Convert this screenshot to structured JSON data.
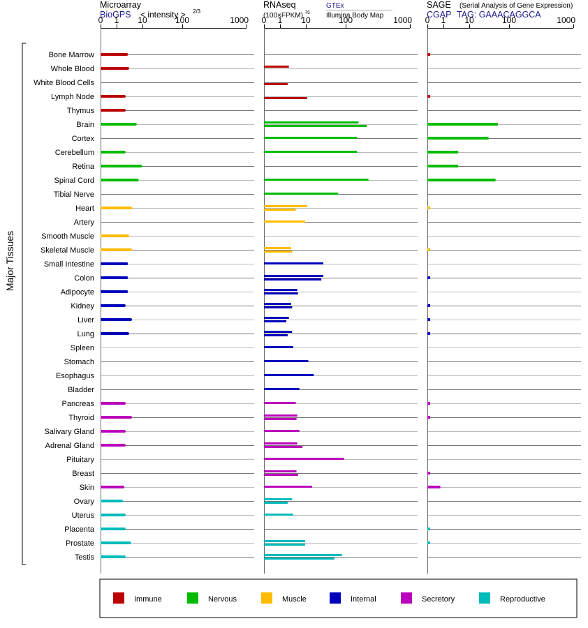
{
  "chart_data": {
    "type": "bar",
    "y_axis_title": "Major Tissues",
    "tick_labels": [
      "0",
      "1",
      "10",
      "100",
      "1000"
    ],
    "panels": [
      {
        "key": "microarray",
        "title": "Microarray",
        "source": "BioGPS",
        "unit_label": "< intensity >",
        "unit_exponent": "2/3",
        "values": [
          [
            1.7
          ],
          [
            1.8
          ],
          [
            null
          ],
          [
            1.5
          ],
          [
            1.5
          ],
          [
            2.7
          ],
          [
            null
          ],
          [
            1.5
          ],
          [
            3.6
          ],
          [
            3.0
          ],
          [
            null
          ],
          [
            2.1
          ],
          [
            null
          ],
          [
            1.8
          ],
          [
            2.1
          ],
          [
            1.7
          ],
          [
            1.7
          ],
          [
            1.7
          ],
          [
            1.5
          ],
          [
            2.1
          ],
          [
            1.8
          ],
          [
            null
          ],
          [
            null
          ],
          [
            null
          ],
          [
            null
          ],
          [
            1.5
          ],
          [
            2.1
          ],
          [
            1.5
          ],
          [
            1.5
          ],
          [
            null
          ],
          [
            null
          ],
          [
            1.4
          ],
          [
            1.3
          ],
          [
            1.5
          ],
          [
            1.5
          ],
          [
            2.0
          ],
          [
            1.5
          ]
        ]
      },
      {
        "key": "rnaseq",
        "title": "RNAseq",
        "unit_label": "(100×FPKM)",
        "unit_exponent": "½",
        "sources": [
          "GTEx",
          "Illumina Body Map"
        ],
        "values": [
          [
            null
          ],
          [
            1.6,
            null
          ],
          [
            null,
            1.5
          ],
          [
            null,
            4.2
          ],
          [
            null
          ],
          [
            65,
            100
          ],
          [
            60
          ],
          [
            60
          ],
          [
            null
          ],
          [
            110
          ],
          [
            22
          ],
          [
            4.2,
            2.3
          ],
          [
            3.8
          ],
          [
            null
          ],
          [
            1.8,
            1.9
          ],
          [
            10
          ],
          [
            10,
            9
          ],
          [
            2.5,
            2.6
          ],
          [
            1.8,
            1.9
          ],
          [
            1.6,
            1.4
          ],
          [
            1.9,
            1.5
          ],
          [
            2.0
          ],
          [
            4.5
          ],
          [
            6.0
          ],
          [
            2.8
          ],
          [
            2.3
          ],
          [
            2.5,
            2.4
          ],
          [
            2.8
          ],
          [
            2.5,
            3.3
          ],
          [
            30
          ],
          [
            2.4,
            2.6
          ],
          [
            5.5
          ],
          [
            1.9,
            1.5
          ],
          [
            2.0
          ],
          [
            null
          ],
          [
            3.8,
            3.8
          ],
          [
            27,
            18
          ]
        ]
      },
      {
        "key": "sage",
        "title": "SAGE",
        "subtitle": "(Serial Analysis of Gene Expression)",
        "source_label": "CGAP",
        "tag_label": "TAG: GAAACAGGCA",
        "values": [
          [
            0.03
          ],
          [
            null
          ],
          [
            null
          ],
          [
            0.03
          ],
          [
            null
          ],
          [
            18
          ],
          [
            11
          ],
          [
            2.2
          ],
          [
            2.2
          ],
          [
            16
          ],
          [
            null
          ],
          [
            0.03
          ],
          [
            null
          ],
          [
            null
          ],
          [
            0.03
          ],
          [
            null
          ],
          [
            0.03
          ],
          [
            null
          ],
          [
            0.03
          ],
          [
            0.03
          ],
          [
            0.03
          ],
          [
            null
          ],
          [
            null
          ],
          [
            null
          ],
          [
            null
          ],
          [
            0.03
          ],
          [
            0.03
          ],
          [
            null
          ],
          [
            null
          ],
          [
            null
          ],
          [
            0.03
          ],
          [
            0.65
          ],
          [
            null
          ],
          [
            null
          ],
          [
            0.03
          ],
          [
            0.03
          ],
          [
            null
          ]
        ]
      }
    ],
    "tissues": [
      {
        "name": "Bone Marrow",
        "group": "Immune"
      },
      {
        "name": "Whole Blood",
        "group": "Immune"
      },
      {
        "name": "White Blood Cells",
        "group": "Immune"
      },
      {
        "name": "Lymph Node",
        "group": "Immune"
      },
      {
        "name": "Thymus",
        "group": "Immune"
      },
      {
        "name": "Brain",
        "group": "Nervous"
      },
      {
        "name": "Cortex",
        "group": "Nervous"
      },
      {
        "name": "Cerebellum",
        "group": "Nervous"
      },
      {
        "name": "Retina",
        "group": "Nervous"
      },
      {
        "name": "Spinal Cord",
        "group": "Nervous"
      },
      {
        "name": "Tibial Nerve",
        "group": "Nervous"
      },
      {
        "name": "Heart",
        "group": "Muscle"
      },
      {
        "name": "Artery",
        "group": "Muscle"
      },
      {
        "name": "Smooth Muscle",
        "group": "Muscle"
      },
      {
        "name": "Skeletal Muscle",
        "group": "Muscle"
      },
      {
        "name": "Small Intestine",
        "group": "Internal"
      },
      {
        "name": "Colon",
        "group": "Internal"
      },
      {
        "name": "Adipocyte",
        "group": "Internal"
      },
      {
        "name": "Kidney",
        "group": "Internal"
      },
      {
        "name": "Liver",
        "group": "Internal"
      },
      {
        "name": "Lung",
        "group": "Internal"
      },
      {
        "name": "Spleen",
        "group": "Internal"
      },
      {
        "name": "Stomach",
        "group": "Internal"
      },
      {
        "name": "Esophagus",
        "group": "Internal"
      },
      {
        "name": "Bladder",
        "group": "Internal"
      },
      {
        "name": "Pancreas",
        "group": "Secretory"
      },
      {
        "name": "Thyroid",
        "group": "Secretory"
      },
      {
        "name": "Salivary Gland",
        "group": "Secretory"
      },
      {
        "name": "Adrenal Gland",
        "group": "Secretory"
      },
      {
        "name": "Pituitary",
        "group": "Secretory"
      },
      {
        "name": "Breast",
        "group": "Secretory"
      },
      {
        "name": "Skin",
        "group": "Secretory"
      },
      {
        "name": "Ovary",
        "group": "Reproductive"
      },
      {
        "name": "Uterus",
        "group": "Reproductive"
      },
      {
        "name": "Placenta",
        "group": "Reproductive"
      },
      {
        "name": "Prostate",
        "group": "Reproductive"
      },
      {
        "name": "Testis",
        "group": "Reproductive"
      }
    ],
    "legend": [
      {
        "name": "Immune",
        "color": "#bb0000"
      },
      {
        "name": "Nervous",
        "color": "#00bb00"
      },
      {
        "name": "Muscle",
        "color": "#ffbb00"
      },
      {
        "name": "Internal",
        "color": "#0000bb"
      },
      {
        "name": "Secretory",
        "color": "#bb00bb"
      },
      {
        "name": "Reproductive",
        "color": "#00bbbb"
      }
    ],
    "colors": {
      "Immune": "#bb0000",
      "Nervous": "#00bb00",
      "Muscle": "#ffbb00",
      "Internal": "#0000bb",
      "Secretory": "#bb00bb",
      "Reproductive": "#00bbbb"
    }
  }
}
